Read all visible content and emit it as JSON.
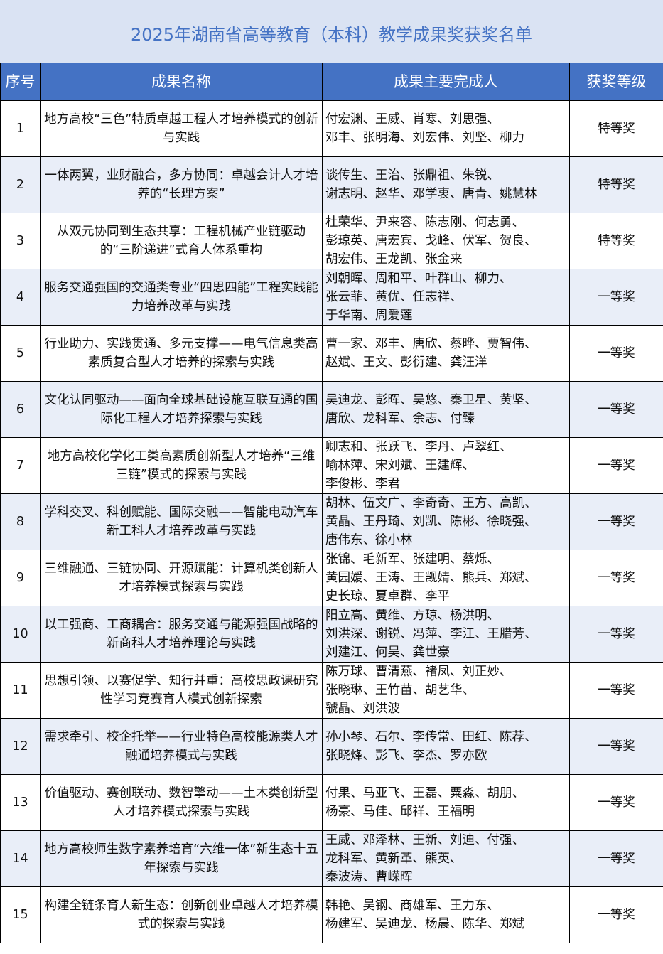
{
  "title": "2025年湖南省高等教育（本科）教学成果奖获奖名单",
  "colors": {
    "title_bg": "#dae3f3",
    "title_text": "#4472c4",
    "header_bg": "#4472c4",
    "alt_row": "#e9eef8"
  },
  "headers": [
    "序号",
    "成果名称",
    "成果主要完成人",
    "获奖等级"
  ],
  "rows": [
    {
      "no": "1",
      "name": "地方高校“三色”特质卓越工程人才培养模式的创新与实践",
      "people": "付宏渊、王威、肖寒、刘思强、\n邓丰、张明海、刘宏伟、刘坚、柳力",
      "award": "特等奖"
    },
    {
      "no": "2",
      "name": "一体两翼，业财融合，多方协同：卓越会计人才培养的“长理方案”",
      "people": "谈传生、王治、张鼎祖、朱锐、\n谢志明、赵华、邓学衷、唐青、姚慧林",
      "award": "特等奖"
    },
    {
      "no": "3",
      "name": "从双元协同到生态共享：工程机械产业链驱动的“三阶递进”式育人体系重构",
      "people": "杜荣华、尹来容、陈志刚、何志勇、\n彭琼英、唐宏宾、戈峰、伏军、贺良、\n胡宏伟、王龙凯、张金来",
      "award": "特等奖"
    },
    {
      "no": "4",
      "name": "服务交通强国的交通类专业“四思四能”工程实践能力培养改革与实践",
      "people": "刘朝晖、周和平、叶群山、柳力、\n张云菲、黄优、任志祥、\n于华南、周爱莲",
      "award": "一等奖"
    },
    {
      "no": "5",
      "name": "行业助力、实践贯通、多元支撑——电气信息类高素质复合型人才培养的探索与实践",
      "people": "曹一家、邓丰、唐欣、蔡晔、贾智伟、\n赵斌、王文、彭衍建、龚汪洋",
      "award": "一等奖"
    },
    {
      "no": "6",
      "name": "文化认同驱动——面向全球基础设施互联互通的国际化工程人才培养探索与实践",
      "people": "吴迪龙、彭晖、吴悠、秦卫星、黄坚、\n唐欣、龙科军、余志、付臻",
      "award": "一等奖"
    },
    {
      "no": "7",
      "name": "地方高校化学化工类高素质创新型人才培养“三维三链”模式的探索与实践",
      "people": "卿志和、张跃飞、李丹、卢翠红、\n喻林萍、宋刘斌、王建辉、\n李俊彬、李君",
      "award": "一等奖"
    },
    {
      "no": "8",
      "name": "学科交叉、科创赋能、国际交融——智能电动汽车新工科人才培养改革与实践",
      "people": "胡林、伍文广、李奇奇、王方、高凯、\n黄晶、王丹琦、刘凯、陈彬、徐晓强、\n唐伟东、徐小林",
      "award": "一等奖"
    },
    {
      "no": "9",
      "name": "三维融通、三链协同、开源赋能：计算机类创新人才培养模式探索与实践",
      "people": "张锦、毛新军、张建明、蔡烁、\n黄园媛、王涛、王觊婧、熊兵、郑斌、\n史长琼、夏卓群、李平",
      "award": "一等奖"
    },
    {
      "no": "10",
      "name": "以工强商、工商耦合：服务交通与能源强国战略的新商科人才培养理论与实践",
      "people": "阳立高、黄维、方琼、杨洪明、\n刘洪深、谢锐、冯萍、李江、王腊芳、\n刘建江、何昊、龚世豪",
      "award": "一等奖"
    },
    {
      "no": "11",
      "name": "思想引领、以赛促学、知行并重：高校思政课研究性学习竞赛育人模式创新探索",
      "people": "陈万球、曹清燕、褚凤、刘正妙、\n张晓琳、王竹苗、胡艺华、\n虢晶、刘洪波",
      "award": "一等奖"
    },
    {
      "no": "12",
      "name": "需求牵引、校企托举——行业特色高校能源类人才融通培养模式与实践",
      "people": "孙小琴、石尔、李传常、田红、陈荐、\n张晓烽、彭飞、李杰、罗亦欧",
      "award": "一等奖"
    },
    {
      "no": "13",
      "name": "价值驱动、赛创联动、数智擎动——土木类创新型人才培养模式探索与实践",
      "people": "付果、马亚飞、王磊、粟淼、胡朋、\n杨豪、马佳、邱祥、王福明",
      "award": "一等奖"
    },
    {
      "no": "14",
      "name": "地方高校师生数字素养培育“六维一体”新生态十五年探索与实践",
      "people": "王威、邓泽林、王新、刘迪、付强、\n龙科军、黄新革、熊英、\n秦波涛、曹嵘晖",
      "award": "一等奖"
    },
    {
      "no": "15",
      "name": "构建全链条育人新生态：创新创业卓越人才培养模式的探索与实践",
      "people": "韩艳、吴钢、商雄军、王力东、\n杨建军、吴迪龙、杨晨、陈华、郑斌",
      "award": "一等奖"
    }
  ]
}
